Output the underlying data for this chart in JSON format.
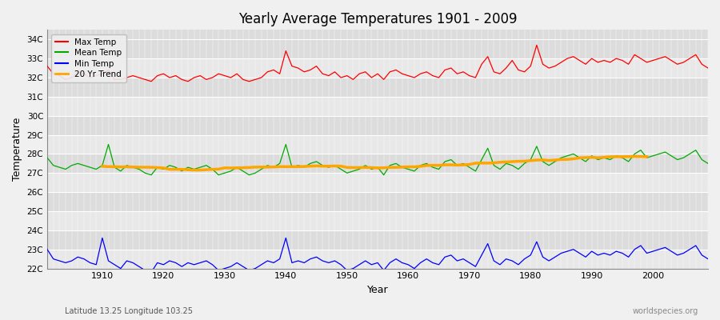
{
  "title": "Yearly Average Temperatures 1901 - 2009",
  "ylabel": "Temperature",
  "xlabel": "Year",
  "subtitle_left": "Latitude 13.25 Longitude 103.25",
  "subtitle_right": "worldspecies.org",
  "years": [
    1901,
    1902,
    1903,
    1904,
    1905,
    1906,
    1907,
    1908,
    1909,
    1910,
    1911,
    1912,
    1913,
    1914,
    1915,
    1916,
    1917,
    1918,
    1919,
    1920,
    1921,
    1922,
    1923,
    1924,
    1925,
    1926,
    1927,
    1928,
    1929,
    1930,
    1931,
    1932,
    1933,
    1934,
    1935,
    1936,
    1937,
    1938,
    1939,
    1940,
    1941,
    1942,
    1943,
    1944,
    1945,
    1946,
    1947,
    1948,
    1949,
    1950,
    1951,
    1952,
    1953,
    1954,
    1955,
    1956,
    1957,
    1958,
    1959,
    1960,
    1961,
    1962,
    1963,
    1964,
    1965,
    1966,
    1967,
    1968,
    1969,
    1970,
    1971,
    1972,
    1973,
    1974,
    1975,
    1976,
    1977,
    1978,
    1979,
    1980,
    1981,
    1982,
    1983,
    1984,
    1985,
    1986,
    1987,
    1988,
    1989,
    1990,
    1991,
    1992,
    1993,
    1994,
    1995,
    1996,
    1997,
    1998,
    1999,
    2000,
    2001,
    2002,
    2003,
    2004,
    2005,
    2006,
    2007,
    2008,
    2009
  ],
  "max_temp": [
    32.6,
    32.2,
    32.1,
    31.9,
    32.0,
    32.3,
    32.2,
    32.0,
    32.1,
    32.2,
    32.4,
    31.9,
    31.9,
    32.0,
    32.1,
    32.0,
    31.9,
    31.8,
    32.1,
    32.2,
    32.0,
    32.1,
    31.9,
    31.8,
    32.0,
    32.1,
    31.9,
    32.0,
    32.2,
    32.1,
    32.0,
    32.2,
    31.9,
    31.8,
    31.9,
    32.0,
    32.3,
    32.4,
    32.2,
    33.4,
    32.6,
    32.5,
    32.3,
    32.4,
    32.6,
    32.2,
    32.1,
    32.3,
    32.0,
    32.1,
    31.9,
    32.2,
    32.3,
    32.0,
    32.2,
    31.9,
    32.3,
    32.4,
    32.2,
    32.1,
    32.0,
    32.2,
    32.3,
    32.1,
    32.0,
    32.4,
    32.5,
    32.2,
    32.3,
    32.1,
    32.0,
    32.7,
    33.1,
    32.3,
    32.2,
    32.5,
    32.9,
    32.4,
    32.3,
    32.6,
    33.7,
    32.7,
    32.5,
    32.6,
    32.8,
    33.0,
    33.1,
    32.9,
    32.7,
    33.0,
    32.8,
    32.9,
    32.8,
    33.0,
    32.9,
    32.7,
    33.2,
    33.0,
    32.8,
    32.9,
    33.0,
    33.1,
    32.9,
    32.7,
    32.8,
    33.0,
    33.2,
    32.7,
    32.5
  ],
  "mean_temp": [
    27.8,
    27.4,
    27.3,
    27.2,
    27.4,
    27.5,
    27.4,
    27.3,
    27.2,
    27.4,
    28.5,
    27.3,
    27.1,
    27.4,
    27.3,
    27.2,
    27.0,
    26.9,
    27.3,
    27.2,
    27.4,
    27.3,
    27.1,
    27.3,
    27.2,
    27.3,
    27.4,
    27.2,
    26.9,
    27.0,
    27.1,
    27.3,
    27.1,
    26.9,
    27.0,
    27.2,
    27.4,
    27.3,
    27.5,
    28.5,
    27.3,
    27.4,
    27.3,
    27.5,
    27.6,
    27.4,
    27.3,
    27.4,
    27.2,
    27.0,
    27.1,
    27.2,
    27.4,
    27.2,
    27.3,
    26.9,
    27.4,
    27.5,
    27.3,
    27.2,
    27.1,
    27.4,
    27.5,
    27.3,
    27.2,
    27.6,
    27.7,
    27.4,
    27.5,
    27.3,
    27.1,
    27.7,
    28.3,
    27.4,
    27.2,
    27.5,
    27.4,
    27.2,
    27.5,
    27.7,
    28.4,
    27.6,
    27.4,
    27.6,
    27.8,
    27.9,
    28.0,
    27.8,
    27.6,
    27.9,
    27.7,
    27.8,
    27.7,
    27.9,
    27.8,
    27.6,
    28.0,
    28.2,
    27.8,
    27.9,
    28.0,
    28.1,
    27.9,
    27.7,
    27.8,
    28.0,
    28.2,
    27.7,
    27.5
  ],
  "min_temp": [
    23.0,
    22.5,
    22.4,
    22.3,
    22.4,
    22.6,
    22.5,
    22.3,
    22.2,
    23.6,
    22.4,
    22.2,
    22.0,
    22.4,
    22.3,
    22.1,
    21.9,
    21.8,
    22.3,
    22.2,
    22.4,
    22.3,
    22.1,
    22.3,
    22.2,
    22.3,
    22.4,
    22.2,
    21.9,
    22.0,
    22.1,
    22.3,
    22.1,
    21.9,
    22.0,
    22.2,
    22.4,
    22.3,
    22.5,
    23.6,
    22.3,
    22.4,
    22.3,
    22.5,
    22.6,
    22.4,
    22.3,
    22.4,
    22.2,
    21.9,
    22.0,
    22.2,
    22.4,
    22.2,
    22.3,
    21.9,
    22.3,
    22.5,
    22.3,
    22.2,
    22.0,
    22.3,
    22.5,
    22.3,
    22.2,
    22.6,
    22.7,
    22.4,
    22.5,
    22.3,
    22.1,
    22.7,
    23.3,
    22.4,
    22.2,
    22.5,
    22.4,
    22.2,
    22.5,
    22.7,
    23.4,
    22.6,
    22.4,
    22.6,
    22.8,
    22.9,
    23.0,
    22.8,
    22.6,
    22.9,
    22.7,
    22.8,
    22.7,
    22.9,
    22.8,
    22.6,
    23.0,
    23.2,
    22.8,
    22.9,
    23.0,
    23.1,
    22.9,
    22.7,
    22.8,
    23.0,
    23.2,
    22.7,
    22.5
  ],
  "bg_color": "#f0f0f0",
  "plot_bg_color": "#dcdcdc",
  "plot_bg_light": "#e8e8e8",
  "max_color": "#ff0000",
  "mean_color": "#00aa00",
  "min_color": "#0000ff",
  "trend_color": "#ffa500",
  "ylim_min": 22.0,
  "ylim_max": 34.5,
  "yticks": [
    22,
    23,
    24,
    25,
    26,
    27,
    28,
    29,
    30,
    31,
    32,
    33,
    34
  ],
  "ytick_labels": [
    "22C",
    "23C",
    "24C",
    "25C",
    "26C",
    "27C",
    "28C",
    "29C",
    "30C",
    "31C",
    "32C",
    "33C",
    "34C"
  ],
  "xticks": [
    1910,
    1920,
    1930,
    1940,
    1950,
    1960,
    1970,
    1980,
    1990,
    2000
  ],
  "linewidth": 0.9,
  "trend_linewidth": 2.5
}
